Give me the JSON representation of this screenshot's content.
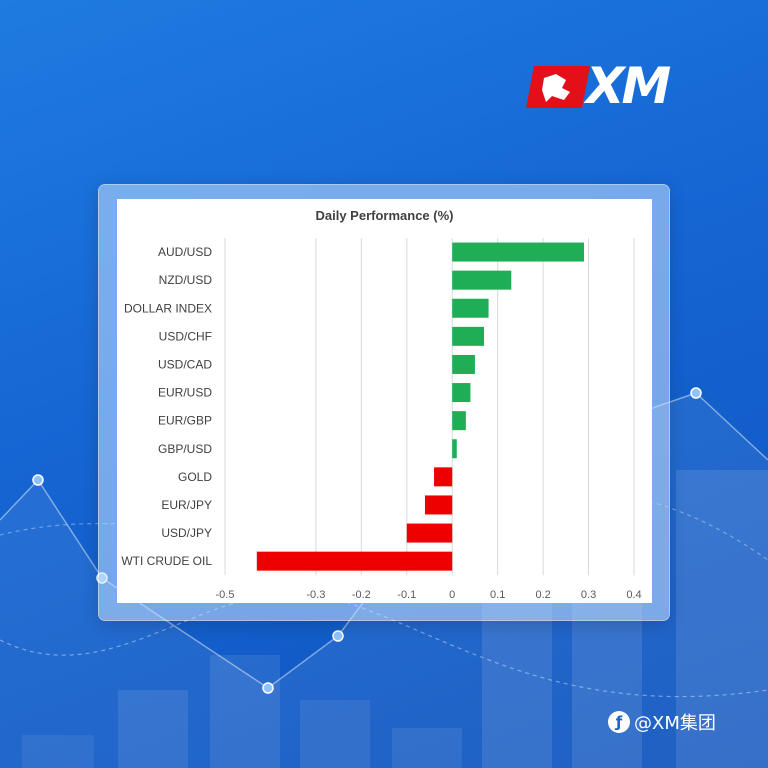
{
  "brand": {
    "logo_text": "XM",
    "watermark": "@XM集团"
  },
  "colors": {
    "positive": "#1fae55",
    "negative": "#ee0000",
    "grid": "#d9d9d9"
  },
  "chart_data": {
    "type": "bar",
    "orientation": "horizontal",
    "title": "Daily Performance (%)",
    "categories": [
      "AUD/USD",
      "NZD/USD",
      "DOLLAR INDEX",
      "USD/CHF",
      "USD/CAD",
      "EUR/USD",
      "EUR/GBP",
      "GBP/USD",
      "GOLD",
      "EUR/JPY",
      "USD/JPY",
      "WTI CRUDE OIL"
    ],
    "values": [
      0.29,
      0.13,
      0.08,
      0.07,
      0.05,
      0.04,
      0.03,
      0.01,
      -0.04,
      -0.06,
      -0.1,
      -0.43
    ],
    "xlim": [
      -0.5,
      0.4
    ],
    "xticks": [
      "-0.5",
      "-0.3",
      "-0.2",
      "-0.1",
      "0",
      "0.1",
      "0.2",
      "0.3",
      "0.4"
    ],
    "xtick_values": [
      -0.5,
      -0.3,
      -0.2,
      -0.1,
      0,
      0.1,
      0.2,
      0.3,
      0.4
    ],
    "grid": true,
    "legend": "none"
  }
}
